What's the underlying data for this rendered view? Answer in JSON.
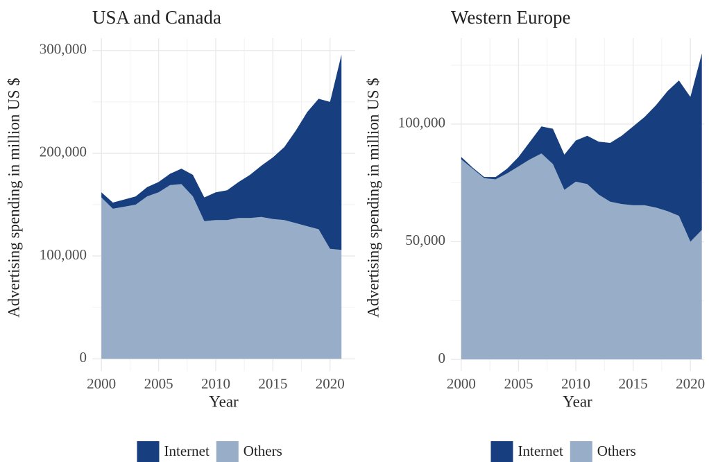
{
  "chart_data": [
    {
      "type": "area",
      "stacked": true,
      "title": "USA and Canada",
      "x_label": "Year",
      "y_label": "Advertising spending in million US $",
      "x": [
        2000,
        2001,
        2002,
        2003,
        2004,
        2005,
        2006,
        2007,
        2008,
        2009,
        2010,
        2011,
        2012,
        2013,
        2014,
        2015,
        2016,
        2017,
        2018,
        2019,
        2020,
        2021
      ],
      "series": [
        {
          "name": "Internet",
          "color": "#173f7f",
          "values": [
            5,
            6,
            7,
            8,
            9,
            10,
            11,
            15,
            21,
            23,
            27,
            29,
            35,
            42,
            50,
            60,
            71,
            90,
            111,
            127,
            143,
            190
          ]
        },
        {
          "name": "Others",
          "color": "#98aec8",
          "values": [
            157,
            146,
            148,
            150,
            158,
            162,
            169,
            170,
            158,
            134,
            135,
            135,
            137,
            137,
            138,
            136,
            135,
            132,
            129,
            126,
            107,
            106
          ]
        }
      ],
      "stack_order": [
        "Others",
        "Internet"
      ],
      "value_scale": 1000,
      "xlim": [
        1999.2,
        2022.2
      ],
      "ylim": [
        -12000,
        312000
      ],
      "xticks": [
        2000,
        2005,
        2010,
        2015,
        2020
      ],
      "yticks": [
        0,
        {
          "value": 100000,
          "label": "100,000"
        },
        {
          "value": 200000,
          "label": "200,000"
        },
        {
          "value": 300000,
          "label": "300,000"
        }
      ],
      "xminor": [
        2002.5,
        2007.5,
        2012.5,
        2017.5
      ],
      "yminor": [
        50000,
        150000,
        250000
      ],
      "grid": true,
      "legend": "bottom"
    },
    {
      "type": "area",
      "stacked": true,
      "title": "Western Europe",
      "x_label": "Year",
      "y_label": "Advertising spending in million US $",
      "x": [
        2000,
        2001,
        2002,
        2003,
        2004,
        2005,
        2006,
        2007,
        2008,
        2009,
        2010,
        2011,
        2012,
        2013,
        2014,
        2015,
        2016,
        2017,
        2018,
        2019,
        2020,
        2021
      ],
      "series": [
        {
          "name": "Internet",
          "color": "#173f7f",
          "values": [
            1,
            0.5,
            0.5,
            1,
            2,
            4,
            7.5,
            11.5,
            15,
            15,
            17.5,
            20.5,
            22.5,
            25,
            29,
            33.5,
            37.5,
            43.5,
            51,
            57.5,
            61.5,
            75
          ]
        },
        {
          "name": "Others",
          "color": "#98aec8",
          "values": [
            85,
            81,
            77,
            76.5,
            79,
            82,
            85,
            87.5,
            83,
            72,
            75.5,
            74.5,
            70,
            67,
            66,
            65.5,
            65.5,
            64.5,
            63,
            61,
            50,
            55
          ]
        }
      ],
      "stack_order": [
        "Others",
        "Internet"
      ],
      "value_scale": 1000,
      "xlim": [
        1999.1,
        2021.2
      ],
      "ylim": [
        -5000,
        136500
      ],
      "xticks": [
        2000,
        2005,
        2010,
        2015,
        2020
      ],
      "yticks": [
        0,
        {
          "value": 50000,
          "label": "50,000"
        },
        {
          "value": 100000,
          "label": "100,000"
        }
      ],
      "xminor": [
        2002.5,
        2007.5,
        2012.5,
        2017.5
      ],
      "yminor": [
        25000,
        75000,
        125000
      ],
      "grid": true,
      "legend": "bottom"
    }
  ]
}
